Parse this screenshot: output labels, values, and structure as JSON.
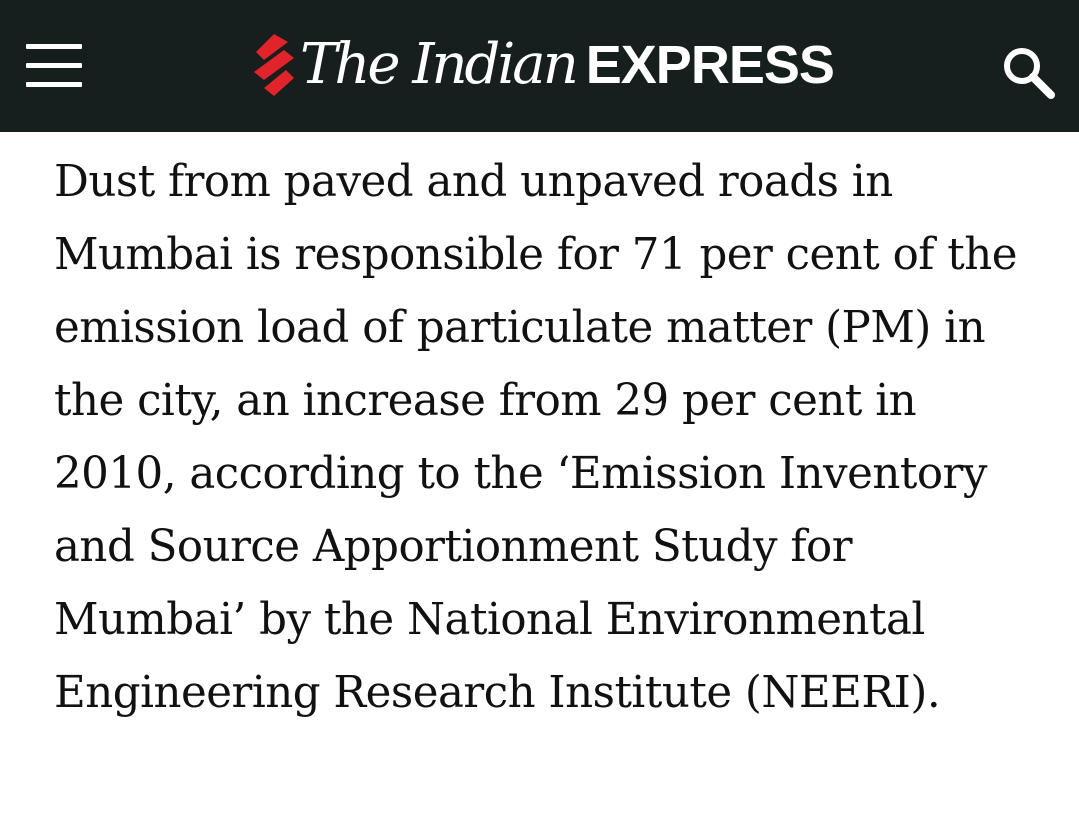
{
  "header": {
    "brand_script": "The Indian",
    "brand_bold": "EXPRESS",
    "menu_icon": "hamburger-menu-icon",
    "search_icon": "search-icon",
    "logo_icon": "flame-logo-icon",
    "background_color": "#161e1e",
    "logo_accent_color": "#e2232a"
  },
  "article": {
    "paragraph": "Dust from paved and unpaved roads in Mumbai is responsible for 71 per cent of the emission load of particulate matter (PM) in the city, an increase from 29 per cent in 2010, according to the ‘Emission Inventory and Source Apportionment Study for Mumbai’ by the National Environmental Engineering Research Institute (NEERI)."
  }
}
